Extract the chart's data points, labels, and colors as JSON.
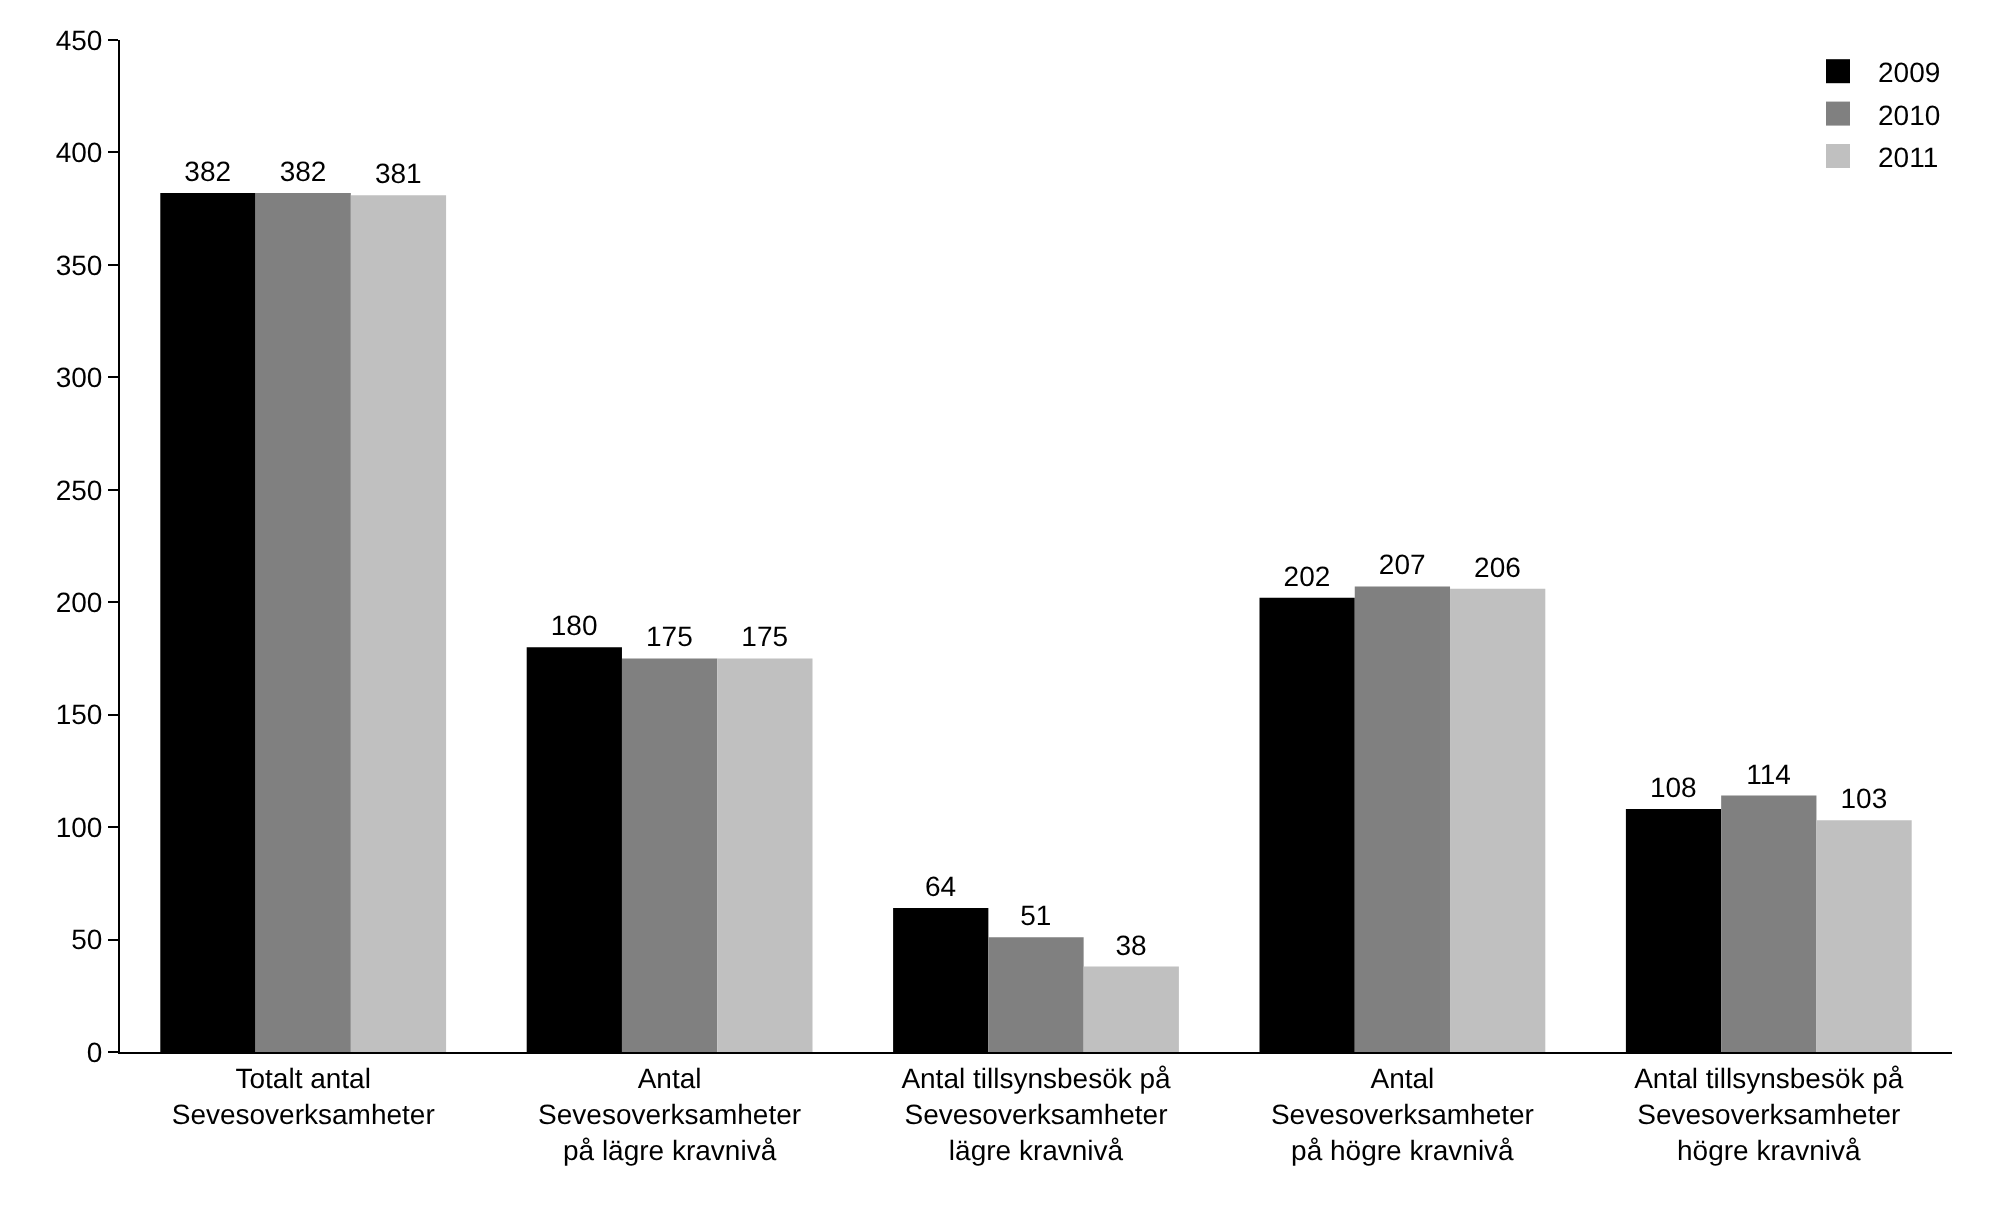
{
  "chart_data": {
    "type": "bar",
    "categories": [
      "Totalt antal\nSevesoverksamheter",
      "Antal\nSevesoverksamheter\npå lägre kravnivå",
      "Antal tillsynsbesök på\nSevesoverksamheter\nlägre kravnivå",
      "Antal\nSevesoverksamheter\npå högre kravnivå",
      "Antal tillsynsbesök på\nSevesoverksamheter\nhögre kravnivå"
    ],
    "series": [
      {
        "name": "2009",
        "color": "#000000",
        "values": [
          382,
          180,
          64,
          202,
          108
        ]
      },
      {
        "name": "2010",
        "color": "#808080",
        "values": [
          382,
          175,
          51,
          207,
          114
        ]
      },
      {
        "name": "2011",
        "color": "#c0c0c0",
        "values": [
          381,
          175,
          38,
          206,
          103
        ]
      }
    ],
    "ylim": [
      0,
      450
    ],
    "yticks": [
      0,
      50,
      100,
      150,
      200,
      250,
      300,
      350,
      400,
      450
    ],
    "data_labels": true,
    "grid": false,
    "legend": "top right"
  }
}
